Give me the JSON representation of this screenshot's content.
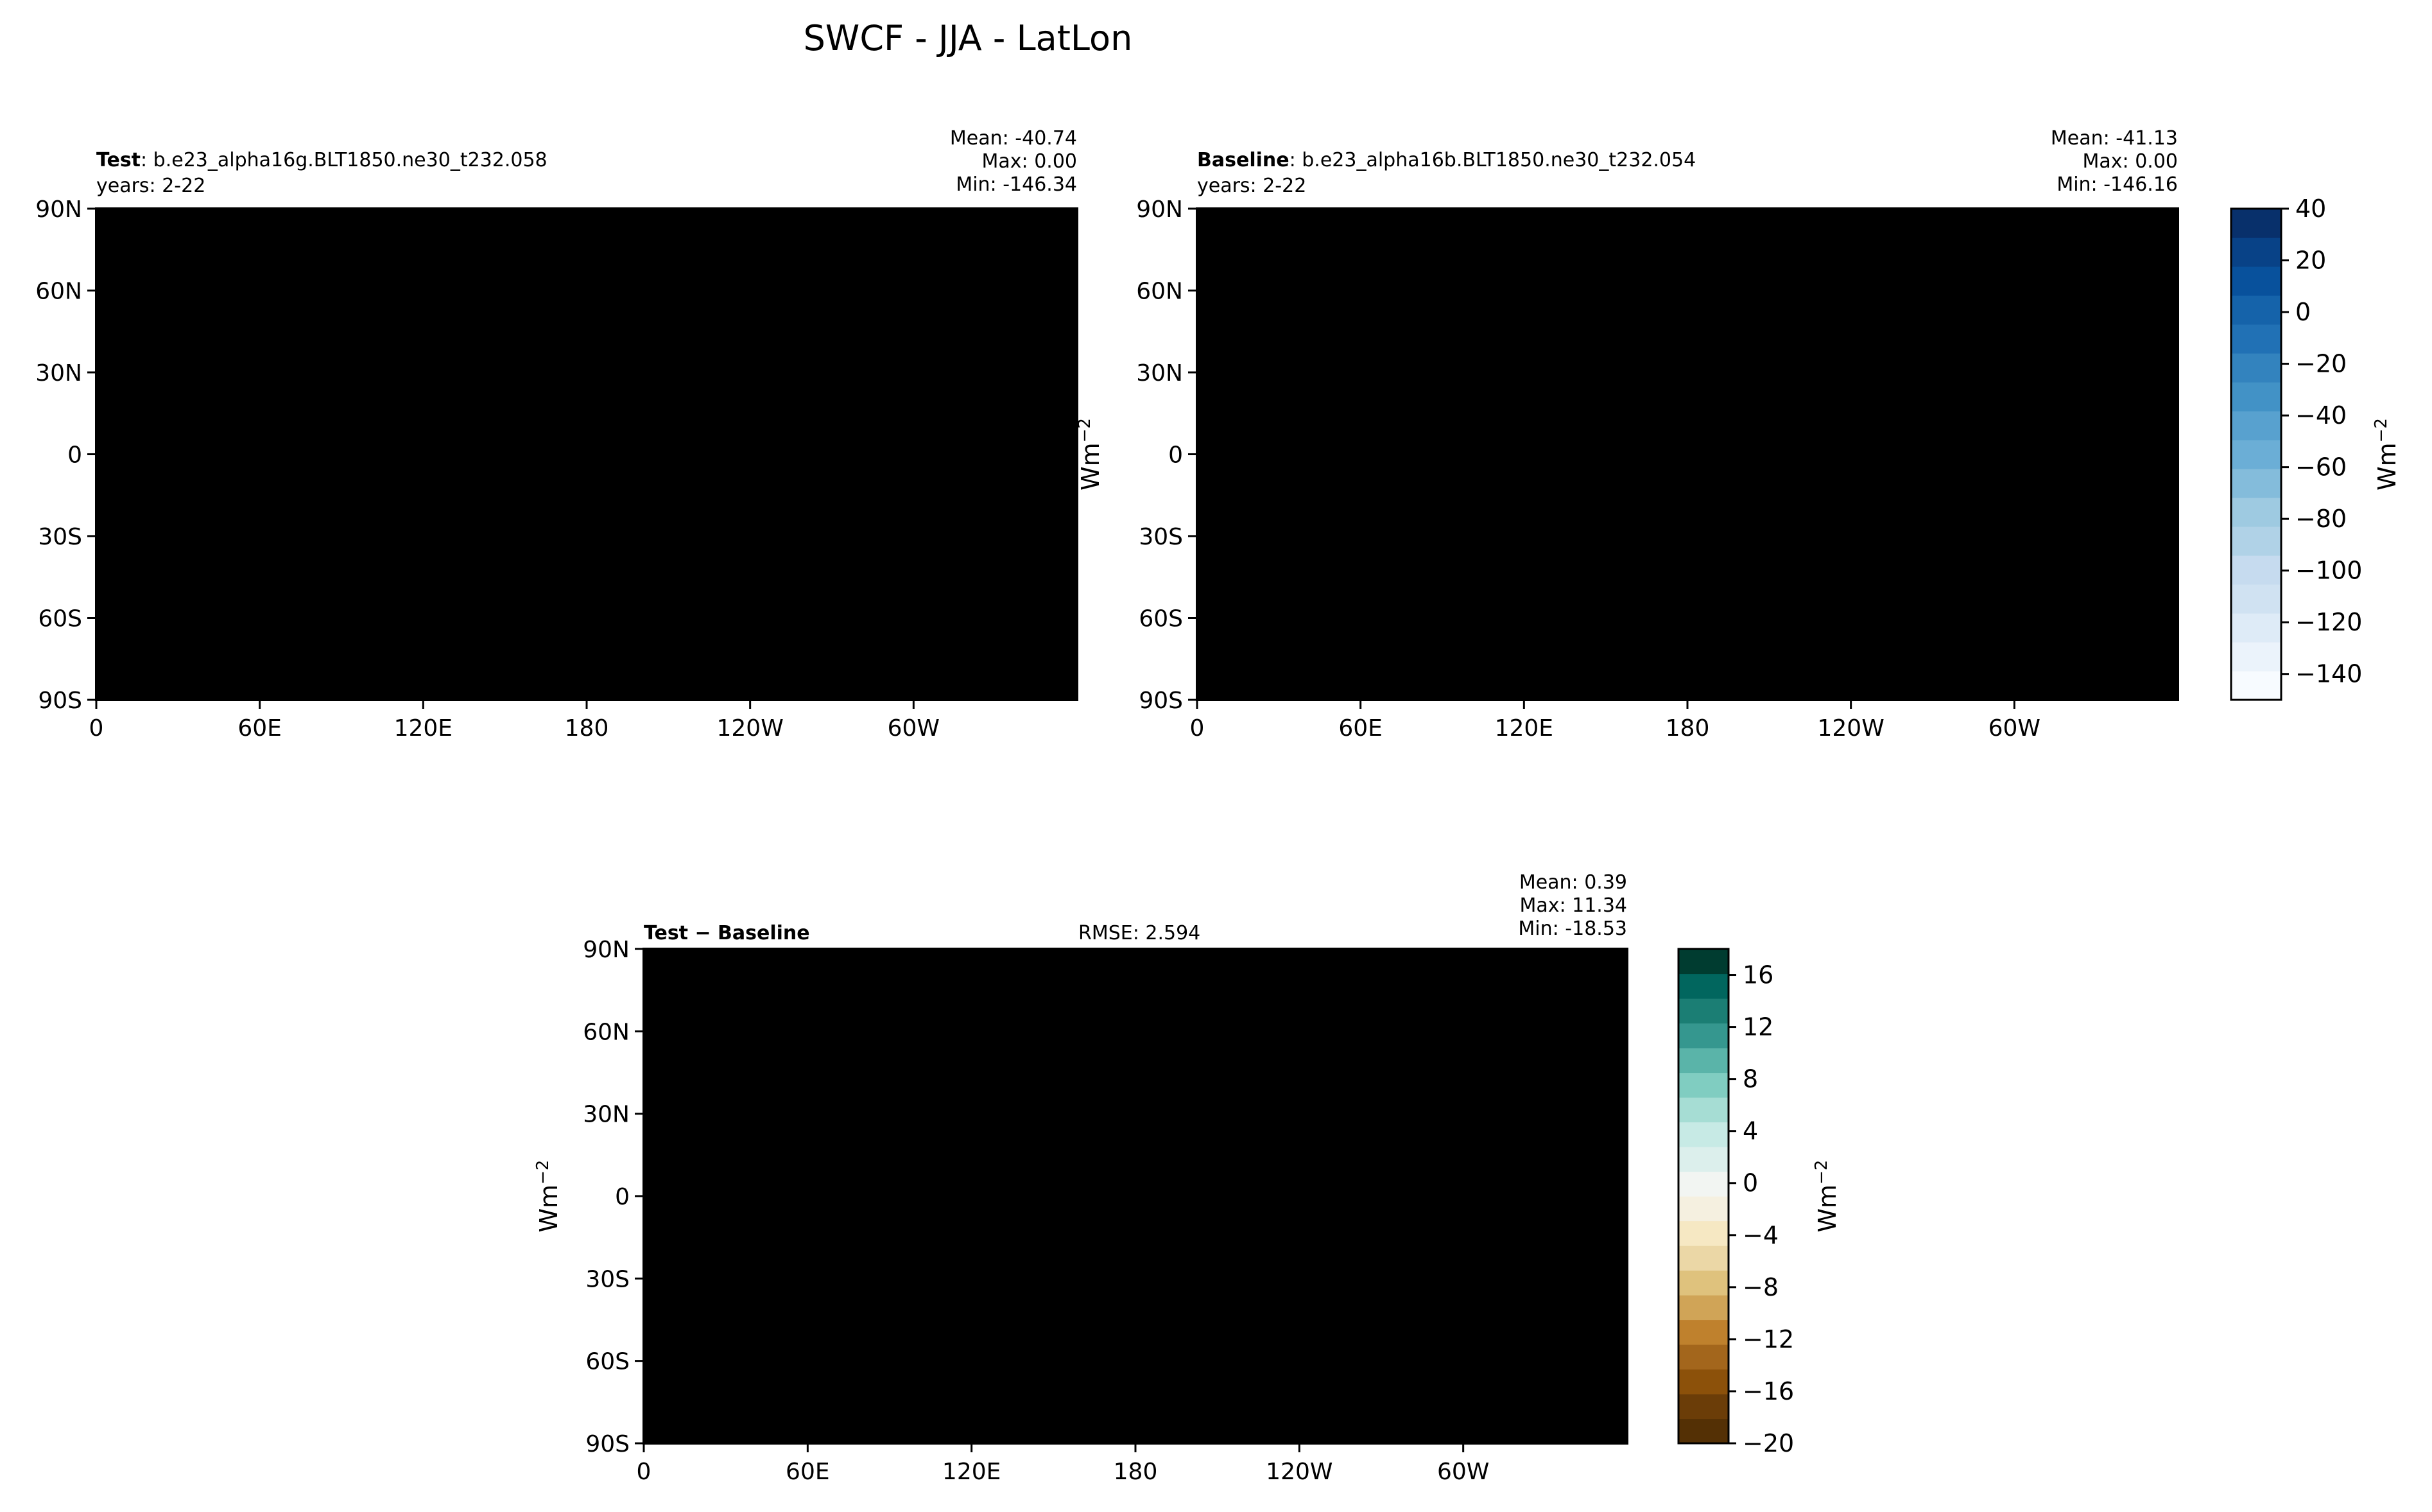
{
  "figure_title": "SWCF - JJA - LatLon",
  "unit_label": "Wm",
  "unit_exp": "−2",
  "panels": [
    {
      "id": "test",
      "name_bold": "Test",
      "name_rest": ": b.e23_alpha16g.BLT1850.ne30_t232.058",
      "years": "years: 2-22",
      "stats": [
        "Mean: -40.74",
        "Max:  0.00",
        "Min: -146.34"
      ],
      "show_ylabel": false
    },
    {
      "id": "baseline",
      "name_bold": "Baseline",
      "name_rest": ": b.e23_alpha16b.BLT1850.ne30_t232.054",
      "years": "years: 2-22",
      "stats": [
        "Mean: -41.13",
        "Max:  0.00",
        "Min: -146.16"
      ],
      "show_ylabel": true
    },
    {
      "id": "diff",
      "name_bold": "Test − Baseline",
      "name_rest": "",
      "rmse": "RMSE: 2.594",
      "stats": [
        "Mean:  0.39",
        "Max: 11.34",
        "Min: -18.53"
      ],
      "show_ylabel": true
    }
  ],
  "chart_data": [
    {
      "type": "heatmap",
      "title": "Test",
      "subtitle": "b.e23_alpha16g.BLT1850.ne30_t232.058",
      "x_ticks": [
        "0",
        "60E",
        "120E",
        "180",
        "120W",
        "60W"
      ],
      "y_ticks": [
        "90N",
        "60N",
        "30N",
        "0",
        "30S",
        "60S",
        "90S"
      ],
      "xlim": [
        0,
        360
      ],
      "ylim": [
        -90,
        90
      ],
      "mean": -40.74,
      "max": 0.0,
      "min": -146.34
    },
    {
      "type": "heatmap",
      "title": "Baseline",
      "subtitle": "b.e23_alpha16b.BLT1850.ne30_t232.054",
      "x_ticks": [
        "0",
        "60E",
        "120E",
        "180",
        "120W",
        "60W"
      ],
      "y_ticks": [
        "90N",
        "60N",
        "30N",
        "0",
        "30S",
        "60S",
        "90S"
      ],
      "xlim": [
        0,
        360
      ],
      "ylim": [
        -90,
        90
      ],
      "mean": -41.13,
      "max": 0.0,
      "min": -146.16
    },
    {
      "type": "heatmap",
      "title": "Test − Baseline",
      "rmse": 2.594,
      "x_ticks": [
        "0",
        "60E",
        "120E",
        "180",
        "120W",
        "60W"
      ],
      "y_ticks": [
        "90N",
        "60N",
        "30N",
        "0",
        "30S",
        "60S",
        "90S"
      ],
      "xlim": [
        0,
        360
      ],
      "ylim": [
        -90,
        90
      ],
      "mean": 0.39,
      "max": 11.34,
      "min": -18.53
    }
  ],
  "colorbar_main": {
    "ticks": [
      40,
      20,
      0,
      -20,
      -40,
      -60,
      -80,
      -100,
      -120,
      -140
    ],
    "tick_labels": [
      "40",
      "20",
      "0",
      "−20",
      "−40",
      "−60",
      "−80",
      "−100",
      "−120",
      "−140"
    ],
    "range": [
      -150,
      40
    ],
    "colors": [
      "#f7fbff",
      "#ebf3fb",
      "#deebf7",
      "#d0e2f2",
      "#c6dbef",
      "#b0d2e7",
      "#9ecae1",
      "#84bcdb",
      "#6baed6",
      "#58a1cf",
      "#4292c6",
      "#3383be",
      "#2171b5",
      "#1563aa",
      "#08519c",
      "#084287",
      "#08306b"
    ]
  },
  "colorbar_diff": {
    "ticks": [
      16,
      12,
      8,
      4,
      0,
      -4,
      -8,
      -12,
      -16,
      -20
    ],
    "tick_labels": [
      "16",
      "12",
      "8",
      "4",
      "0",
      "−4",
      "−8",
      "−12",
      "−16",
      "−20"
    ],
    "range": [
      -20,
      18
    ],
    "colors": [
      "#543005",
      "#6b3d08",
      "#8c510a",
      "#a3661c",
      "#bf812d",
      "#d0a457",
      "#dfc27d",
      "#ebd7a6",
      "#f6e8c3",
      "#f5f0e0",
      "#f2f5f2",
      "#dcefec",
      "#c7eae5",
      "#a6ddd4",
      "#80cdc1",
      "#5ab4a9",
      "#35978f",
      "#1b7e74",
      "#01665e",
      "#003c30"
    ]
  }
}
